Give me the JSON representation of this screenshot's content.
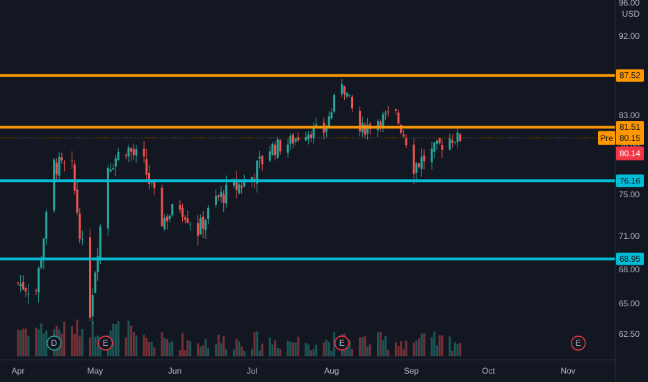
{
  "chart_data": {
    "type": "candlestick",
    "currency": "USD",
    "y_top_label": "96.00",
    "ylim": [
      60.5,
      96.5
    ],
    "y_ticks": [
      "92.00",
      "87.50",
      "83.00",
      "79.00",
      "75.00",
      "71.00",
      "68.00",
      "65.00",
      "62.50"
    ],
    "x_ticks": [
      "Apr",
      "May",
      "Jun",
      "Jul",
      "Aug",
      "Sep",
      "Oct",
      "Nov"
    ],
    "horizontal_levels": [
      {
        "value": 87.52,
        "label": "87.52",
        "color": "#ff9800"
      },
      {
        "value": 81.51,
        "label": "81.51",
        "color": "#ff9800"
      },
      {
        "value": 76.16,
        "label": "76.16",
        "color": "#00bcd4"
      },
      {
        "value": 68.95,
        "label": "68.95",
        "color": "#00bcd4"
      }
    ],
    "premarket": {
      "label": "Pre",
      "value": "80.15",
      "color": "#ff9800"
    },
    "last_price": {
      "value": "80.14",
      "color": "#f23645"
    },
    "events": [
      {
        "label": "D",
        "date": "Apr 15",
        "color": "#26a69a"
      },
      {
        "label": "E",
        "date": "May 05",
        "color": "#f23645"
      },
      {
        "label": "E",
        "date": "Aug 05",
        "color": "#f23645"
      },
      {
        "label": "E",
        "date": "Nov 05",
        "color": "#f23645"
      }
    ],
    "ohlc": [
      {
        "d": "Apr 01",
        "c": 66.8
      },
      {
        "d": "Apr 08",
        "c": 66.2
      },
      {
        "d": "Apr 15",
        "c": 77.5
      },
      {
        "d": "Apr 22",
        "c": 77.0
      },
      {
        "d": "Apr 29",
        "c": 64.5
      },
      {
        "d": "May 06",
        "c": 77.5
      },
      {
        "d": "May 13",
        "c": 79.0
      },
      {
        "d": "May 20",
        "c": 77.5
      },
      {
        "d": "May 27",
        "c": 72.5
      },
      {
        "d": "Jun 03",
        "c": 74.0
      },
      {
        "d": "Jun 10",
        "c": 71.5
      },
      {
        "d": "Jun 17",
        "c": 74.5
      },
      {
        "d": "Jun 24",
        "c": 75.5
      },
      {
        "d": "Jul 01",
        "c": 76.5
      },
      {
        "d": "Jul 08",
        "c": 79.0
      },
      {
        "d": "Jul 15",
        "c": 79.5
      },
      {
        "d": "Jul 22",
        "c": 81.0
      },
      {
        "d": "Jul 29",
        "c": 81.0
      },
      {
        "d": "Aug 05",
        "c": 87.0
      },
      {
        "d": "Aug 12",
        "c": 81.0
      },
      {
        "d": "Aug 19",
        "c": 82.5
      },
      {
        "d": "Aug 26",
        "c": 83.0
      },
      {
        "d": "Sep 02",
        "c": 77.5
      },
      {
        "d": "Sep 09",
        "c": 78.5
      },
      {
        "d": "Sep 16",
        "c": 80.15
      }
    ]
  }
}
